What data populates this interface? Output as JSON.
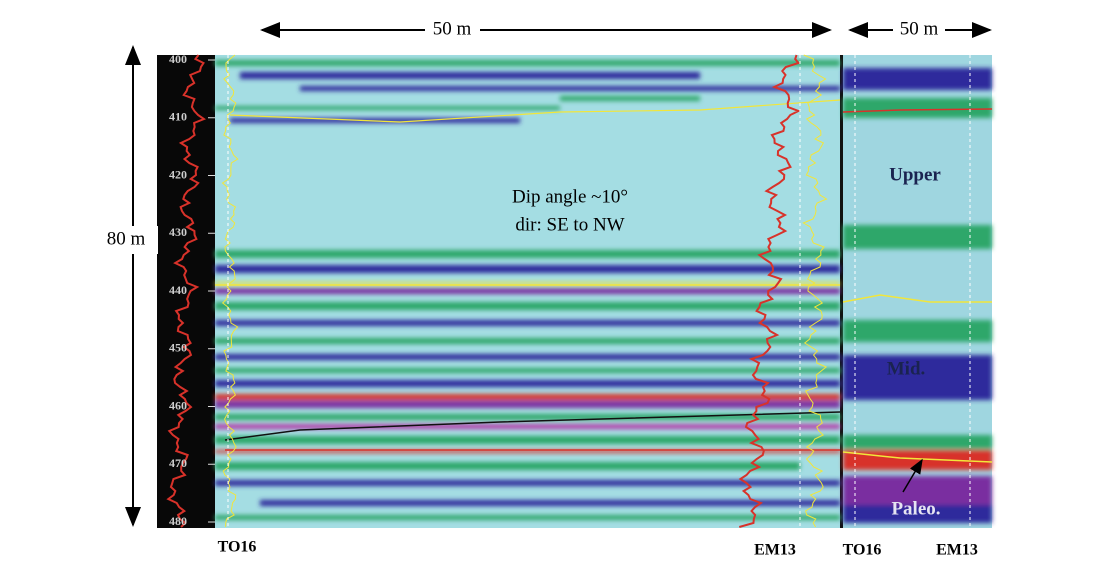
{
  "scale": {
    "main_width": "50 m",
    "panel_width": "50 m",
    "height": "80 m"
  },
  "depth_ticks": [
    400,
    410,
    420,
    430,
    440,
    450,
    460,
    470,
    480
  ],
  "annotation": {
    "line1": "Dip angle ~10°",
    "line2": "dir: SE to NW"
  },
  "units": {
    "upper": "Upper",
    "mid": "Mid.",
    "paleo": "Paleo."
  },
  "wells": {
    "main_left": "TO16",
    "main_right": "EM13",
    "panel_left": "TO16",
    "panel_right": "EM13"
  }
}
